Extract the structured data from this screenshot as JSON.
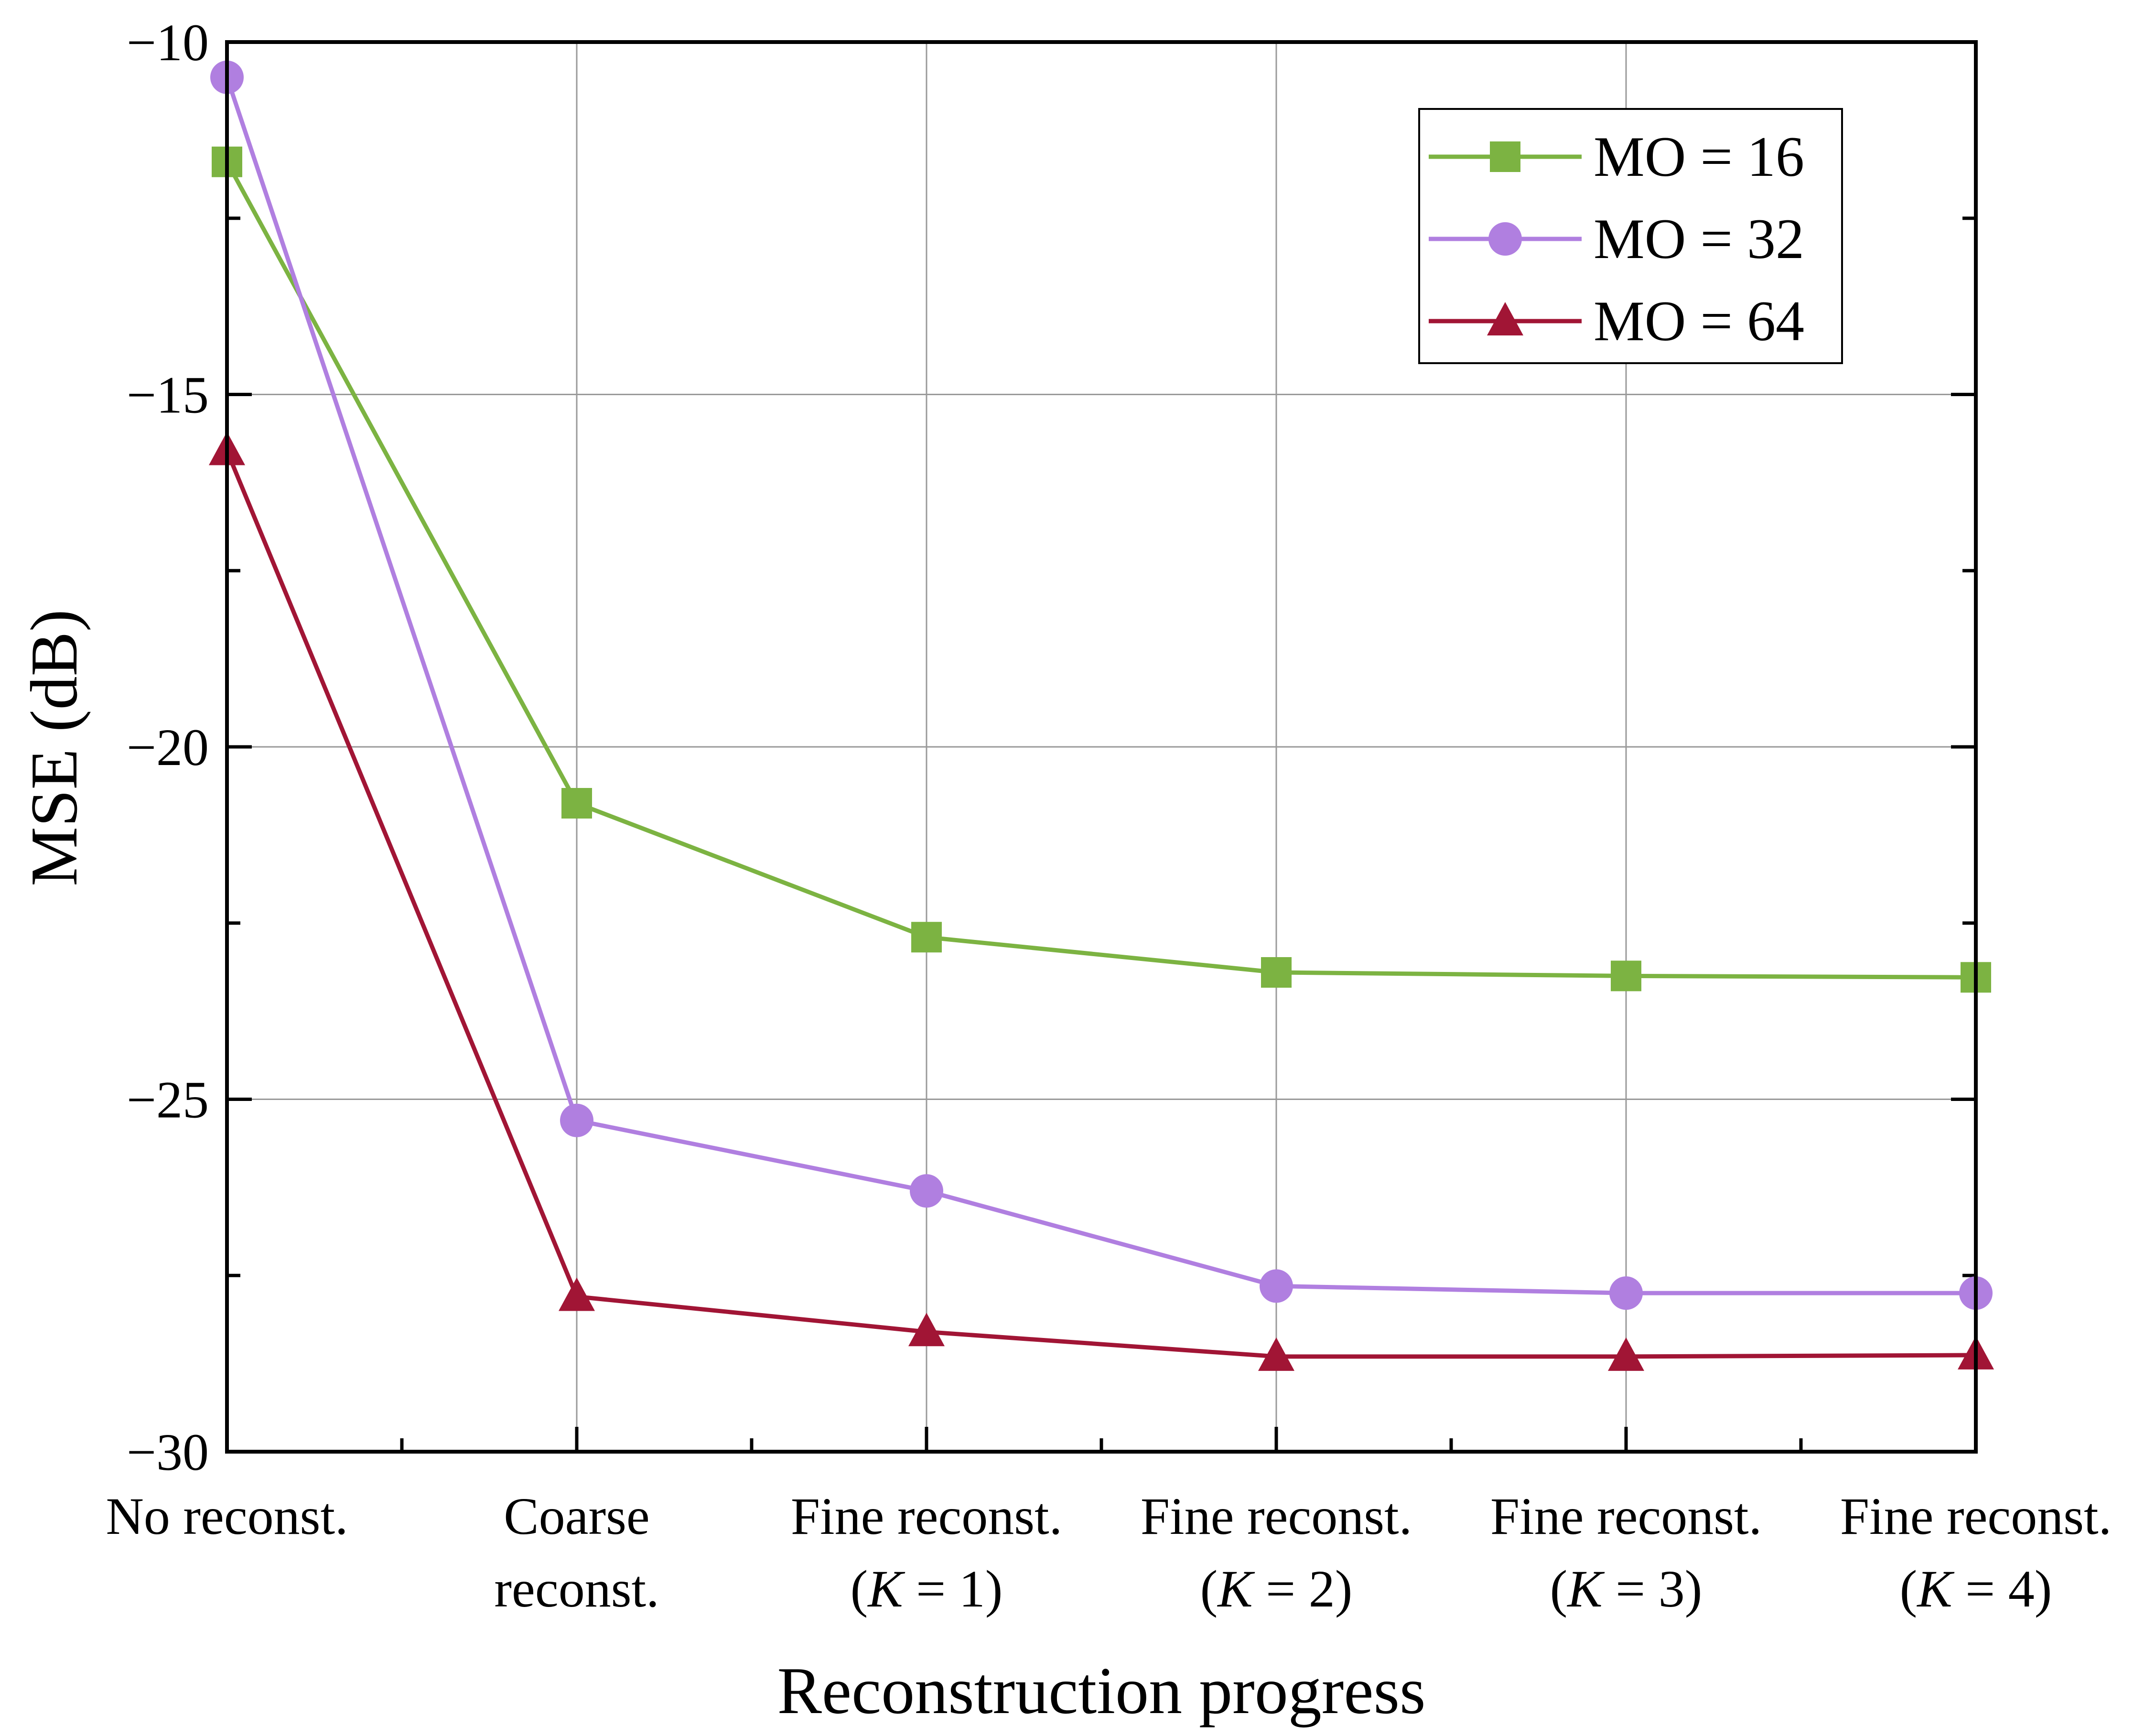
{
  "chart_data": {
    "type": "line",
    "title": "",
    "xlabel": "Reconstruction progress",
    "ylabel": "MSE (dB)",
    "ylim": [
      -30,
      -10
    ],
    "yticks": [
      -10,
      -15,
      -20,
      -25,
      -30
    ],
    "ytick_labels": [
      "−10",
      "−15",
      "−20",
      "−25",
      "−30"
    ],
    "grid": true,
    "legend_position": "top-right",
    "categories": [
      {
        "line1": "No reconst.",
        "line2": "",
        "line2_italic": "",
        "line2_rest": ""
      },
      {
        "line1": "Coarse",
        "line2": "reconst.",
        "line2_italic": "",
        "line2_rest": ""
      },
      {
        "line1": "Fine reconst.",
        "line2": "(",
        "line2_italic": "K",
        "line2_rest": " = 1)"
      },
      {
        "line1": "Fine reconst.",
        "line2": "(",
        "line2_italic": "K",
        "line2_rest": " = 2)"
      },
      {
        "line1": "Fine reconst.",
        "line2": "(",
        "line2_italic": "K",
        "line2_rest": " = 3)"
      },
      {
        "line1": "Fine reconst.",
        "line2": "(",
        "line2_italic": "K",
        "line2_rest": " = 4)"
      }
    ],
    "series": [
      {
        "name": "MO = 16",
        "marker": "square",
        "color": "#7cb342",
        "values": [
          -11.7,
          -20.8,
          -22.7,
          -23.2,
          -23.25,
          -23.27
        ]
      },
      {
        "name": "MO = 32",
        "marker": "circle",
        "color": "#b07fe0",
        "values": [
          -10.5,
          -25.3,
          -26.3,
          -27.65,
          -27.75,
          -27.75
        ]
      },
      {
        "name": "MO = 64",
        "marker": "triangle",
        "color": "#a11535",
        "values": [
          -15.8,
          -27.8,
          -28.3,
          -28.65,
          -28.65,
          -28.63
        ]
      }
    ]
  }
}
